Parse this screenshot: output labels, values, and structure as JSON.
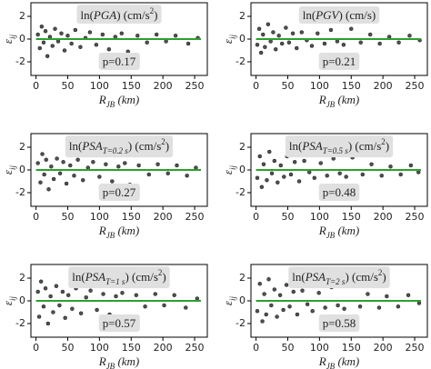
{
  "chart_data": [
    {
      "type": "scatter",
      "title": [
        "ln(",
        "PGA",
        ") (cm/s",
        "2",
        ")"
      ],
      "title_format": [
        "normal",
        "italic",
        "normal",
        "sup",
        "normal"
      ],
      "annotation": "p=0.17",
      "xlabel": [
        "R",
        "JB",
        " (km)"
      ],
      "xlabel_format": [
        "italic",
        "sub",
        "italic"
      ],
      "ylabel": [
        "ε",
        "ij"
      ],
      "ylabel_format": [
        "italic",
        "sub"
      ],
      "xlim": [
        -8,
        270
      ],
      "ylim": [
        -3.2,
        3.2
      ],
      "xticks": [
        0,
        50,
        100,
        150,
        200,
        250
      ],
      "yticks": [
        -2,
        0,
        2
      ],
      "color": "#333333",
      "x": [
        3,
        6,
        9,
        12,
        15,
        18,
        22,
        26,
        30,
        35,
        40,
        45,
        50,
        56,
        62,
        70,
        78,
        85,
        95,
        105,
        115,
        125,
        135,
        145,
        160,
        175,
        190,
        205,
        220,
        240,
        255
      ],
      "y": [
        0.4,
        -0.8,
        1.1,
        -0.3,
        0.7,
        -1.5,
        0.2,
        -0.6,
        0.9,
        -0.2,
        0.5,
        -1.0,
        0.3,
        -0.4,
        0.8,
        -0.7,
        0.1,
        0.6,
        -0.5,
        0.4,
        -0.9,
        0.2,
        0.5,
        -1.1,
        0.3,
        -0.3,
        0.4,
        -0.2,
        0.3,
        -0.4,
        0.1
      ],
      "trend": {
        "x": [
          0,
          260
        ],
        "y": [
          0,
          0
        ],
        "color": "#2ca02c"
      }
    },
    {
      "type": "scatter",
      "title": [
        "ln(",
        "PGV",
        ") (cm/s)"
      ],
      "title_format": [
        "normal",
        "italic",
        "normal"
      ],
      "annotation": "p=0.21",
      "xlabel": [
        "R",
        "JB",
        " (km)"
      ],
      "xlabel_format": [
        "italic",
        "sub",
        "italic"
      ],
      "ylabel": [
        "ε",
        "ij"
      ],
      "ylabel_format": [
        "italic",
        "sub"
      ],
      "xlim": [
        -8,
        270
      ],
      "ylim": [
        -3.2,
        3.2
      ],
      "xticks": [
        0,
        50,
        100,
        150,
        200,
        250
      ],
      "yticks": [
        -2,
        0,
        2
      ],
      "color": "#333333",
      "x": [
        2,
        5,
        8,
        11,
        14,
        19,
        23,
        27,
        31,
        36,
        41,
        47,
        52,
        58,
        64,
        72,
        80,
        88,
        97,
        108,
        118,
        128,
        138,
        150,
        165,
        180,
        195,
        210,
        225,
        242,
        258
      ],
      "y": [
        -0.5,
        0.9,
        -1.2,
        0.4,
        -0.7,
        1.3,
        -0.2,
        0.6,
        -0.9,
        0.3,
        -0.4,
        1.0,
        -0.3,
        0.5,
        -0.8,
        0.6,
        -0.1,
        -0.6,
        0.5,
        -0.4,
        0.8,
        -0.2,
        -0.5,
        0.9,
        -0.3,
        0.4,
        -0.4,
        0.2,
        -0.3,
        0.3,
        -0.1
      ],
      "trend": {
        "x": [
          0,
          260
        ],
        "y": [
          0,
          0
        ],
        "color": "#2ca02c"
      }
    },
    {
      "type": "scatter",
      "title": [
        "ln(",
        "PSA",
        "T=0.2 s",
        ") (cm/s",
        "2",
        ")"
      ],
      "title_format": [
        "normal",
        "italic",
        "sub",
        "normal",
        "sup",
        "normal"
      ],
      "annotation": "p=0.27",
      "xlabel": [
        "R",
        "JB",
        " (km)"
      ],
      "xlabel_format": [
        "italic",
        "sub",
        "italic"
      ],
      "ylabel": [
        "ε",
        "ij"
      ],
      "ylabel_format": [
        "italic",
        "sub"
      ],
      "xlim": [
        -8,
        270
      ],
      "ylim": [
        -3.2,
        3.2
      ],
      "xticks": [
        0,
        50,
        100,
        150,
        200,
        250
      ],
      "yticks": [
        -2,
        0,
        2
      ],
      "color": "#333333",
      "x": [
        3,
        7,
        10,
        13,
        16,
        20,
        24,
        28,
        33,
        38,
        43,
        48,
        54,
        60,
        66,
        74,
        82,
        90,
        100,
        110,
        120,
        130,
        140,
        148,
        162,
        178,
        192,
        208,
        222,
        238,
        252
      ],
      "y": [
        0.6,
        -1.1,
        1.4,
        -0.4,
        0.9,
        -1.7,
        0.3,
        -0.8,
        1.0,
        -0.3,
        0.7,
        -1.2,
        0.4,
        -0.5,
        0.9,
        -0.9,
        0.2,
        0.7,
        -0.6,
        0.5,
        -1.0,
        0.3,
        0.6,
        -1.3,
        0.4,
        -0.4,
        0.5,
        -0.3,
        0.4,
        -0.5,
        0.2
      ],
      "trend": {
        "x": [
          0,
          260
        ],
        "y": [
          0,
          0
        ],
        "color": "#2ca02c"
      }
    },
    {
      "type": "scatter",
      "title": [
        "ln(",
        "PSA",
        "T=0.5 s",
        ") (cm/s",
        "2",
        ")"
      ],
      "title_format": [
        "normal",
        "italic",
        "sub",
        "normal",
        "sup",
        "normal"
      ],
      "annotation": "p=0.48",
      "xlabel": [
        "R",
        "JB",
        " (km)"
      ],
      "xlabel_format": [
        "italic",
        "sub",
        "italic"
      ],
      "ylabel": [
        "ε",
        "ij"
      ],
      "ylabel_format": [
        "italic",
        "sub"
      ],
      "xlim": [
        -8,
        270
      ],
      "ylim": [
        -3.2,
        3.2
      ],
      "xticks": [
        0,
        50,
        100,
        150,
        200,
        250
      ],
      "yticks": [
        -2,
        0,
        2
      ],
      "color": "#333333",
      "x": [
        2,
        6,
        9,
        12,
        17,
        21,
        25,
        29,
        34,
        39,
        44,
        49,
        55,
        61,
        68,
        76,
        84,
        92,
        102,
        112,
        122,
        132,
        142,
        152,
        168,
        182,
        198,
        212,
        228,
        244,
        256
      ],
      "y": [
        -0.7,
        1.2,
        -1.5,
        0.5,
        -0.9,
        1.6,
        -0.3,
        0.8,
        -1.1,
        0.4,
        -0.6,
        1.2,
        -0.4,
        0.7,
        -1.0,
        0.8,
        -0.2,
        -0.7,
        0.6,
        -0.5,
        1.0,
        -0.3,
        -0.6,
        1.1,
        -0.4,
        0.5,
        -0.5,
        0.3,
        -0.4,
        0.4,
        -0.2
      ],
      "trend": {
        "x": [
          0,
          260
        ],
        "y": [
          0,
          0
        ],
        "color": "#2ca02c"
      }
    },
    {
      "type": "scatter",
      "title": [
        "ln(",
        "PSA",
        "T=1 s",
        ") (cm/s",
        "2",
        ")"
      ],
      "title_format": [
        "normal",
        "italic",
        "sub",
        "normal",
        "sup",
        "normal"
      ],
      "annotation": "p=0.57",
      "xlabel": [
        "R",
        "JB",
        " (km)"
      ],
      "xlabel_format": [
        "italic",
        "sub",
        "italic"
      ],
      "ylabel": [
        "ε",
        "ij"
      ],
      "ylabel_format": [
        "italic",
        "sub"
      ],
      "xlim": [
        -8,
        270
      ],
      "ylim": [
        -3.2,
        3.2
      ],
      "xticks": [
        0,
        50,
        100,
        150,
        200,
        250
      ],
      "yticks": [
        -2,
        0,
        2
      ],
      "color": "#333333",
      "x": [
        3,
        5,
        8,
        12,
        15,
        19,
        23,
        27,
        32,
        37,
        42,
        46,
        51,
        57,
        63,
        71,
        79,
        86,
        96,
        106,
        116,
        126,
        136,
        146,
        158,
        172,
        188,
        202,
        218,
        236,
        254
      ],
      "y": [
        0.8,
        -1.4,
        1.7,
        -0.5,
        1.1,
        -2.0,
        0.4,
        -1.0,
        1.3,
        -0.4,
        0.8,
        -1.5,
        0.5,
        -0.7,
        1.1,
        -1.1,
        0.3,
        0.9,
        -0.8,
        0.6,
        -1.2,
        0.4,
        0.7,
        -1.5,
        0.5,
        -0.5,
        0.6,
        -0.4,
        0.5,
        -0.6,
        0.2
      ],
      "trend": {
        "x": [
          0,
          260
        ],
        "y": [
          0,
          0
        ],
        "color": "#2ca02c"
      }
    },
    {
      "type": "scatter",
      "title": [
        "ln(",
        "PSA",
        "T=2 s",
        ") (cm/s",
        "2",
        ")"
      ],
      "title_format": [
        "normal",
        "italic",
        "sub",
        "normal",
        "sup",
        "normal"
      ],
      "annotation": "p=0.58",
      "xlabel": [
        "R",
        "JB",
        " (km)"
      ],
      "xlabel_format": [
        "italic",
        "sub",
        "italic"
      ],
      "ylabel": [
        "ε",
        "ij"
      ],
      "ylabel_format": [
        "italic",
        "sub"
      ],
      "xlim": [
        -8,
        270
      ],
      "ylim": [
        -3.2,
        3.2
      ],
      "xticks": [
        0,
        50,
        100,
        150,
        200,
        250
      ],
      "yticks": [
        -2,
        0,
        2
      ],
      "color": "#333333",
      "x": [
        2,
        6,
        10,
        13,
        16,
        20,
        24,
        29,
        33,
        38,
        43,
        48,
        53,
        59,
        65,
        73,
        81,
        89,
        99,
        109,
        119,
        129,
        139,
        149,
        164,
        176,
        194,
        206,
        224,
        240,
        257
      ],
      "y": [
        -0.9,
        1.5,
        -1.8,
        0.6,
        -1.2,
        1.9,
        -0.4,
        1.0,
        -1.4,
        0.5,
        -0.8,
        1.4,
        -0.5,
        0.8,
        -1.2,
        0.9,
        -0.3,
        -0.9,
        0.7,
        -0.6,
        1.2,
        -0.4,
        -0.7,
        1.3,
        -0.5,
        0.6,
        -0.6,
        0.4,
        -0.5,
        0.5,
        -0.2
      ],
      "trend": {
        "x": [
          0,
          260
        ],
        "y": [
          0,
          0
        ],
        "color": "#2ca02c"
      }
    }
  ]
}
